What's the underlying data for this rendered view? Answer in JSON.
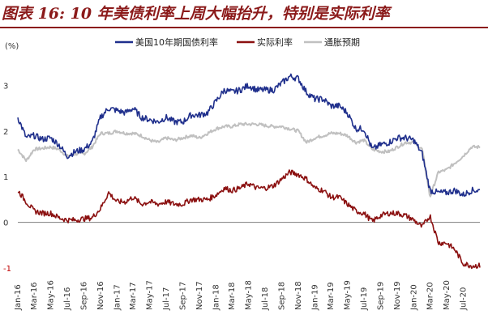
{
  "title": "图表 16: 10 年美债利率上周大幅抬升，特别是实际利率",
  "chart_data": {
    "type": "line",
    "ylabel": "(%)",
    "ylim": [
      -1,
      3.7
    ],
    "y_ticks": [
      "3",
      "2",
      "1",
      "0",
      "-1"
    ],
    "x_ticks": [
      "Jan-16",
      "Mar-16",
      "May-16",
      "Jul-16",
      "Sep-16",
      "Nov-16",
      "Jan-17",
      "Mar-17",
      "May-17",
      "Jul-17",
      "Sep-17",
      "Nov-17",
      "Jan-18",
      "Mar-18",
      "May-18",
      "Jul-18",
      "Sep-18",
      "Nov-18",
      "Jan-19",
      "Mar-19",
      "May-19",
      "Jul-19",
      "Sep-19",
      "Nov-19",
      "Jan-20",
      "Mar-20",
      "May-20",
      "Jul-20"
    ],
    "grid": false,
    "legend_position": "top",
    "colors": {
      "nominal": "#1f2f8c",
      "real": "#8b1010",
      "breakeven": "#c0c0c0",
      "zero_line": "#7f7f7f",
      "negative_tick": "#c00000"
    },
    "series": [
      {
        "name": "美国10年期国债利率",
        "values": [
          {
            "x": "2016-01",
            "y": 2.3
          },
          {
            "x": "2016-02",
            "y": 1.85
          },
          {
            "x": "2016-03",
            "y": 1.9
          },
          {
            "x": "2016-04",
            "y": 1.82
          },
          {
            "x": "2016-05",
            "y": 1.85
          },
          {
            "x": "2016-06",
            "y": 1.7
          },
          {
            "x": "2016-07",
            "y": 1.45
          },
          {
            "x": "2016-08",
            "y": 1.55
          },
          {
            "x": "2016-09",
            "y": 1.6
          },
          {
            "x": "2016-10",
            "y": 1.75
          },
          {
            "x": "2016-11",
            "y": 2.3
          },
          {
            "x": "2016-12",
            "y": 2.5
          },
          {
            "x": "2017-01",
            "y": 2.45
          },
          {
            "x": "2017-02",
            "y": 2.4
          },
          {
            "x": "2017-03",
            "y": 2.5
          },
          {
            "x": "2017-04",
            "y": 2.3
          },
          {
            "x": "2017-05",
            "y": 2.25
          },
          {
            "x": "2017-06",
            "y": 2.2
          },
          {
            "x": "2017-07",
            "y": 2.3
          },
          {
            "x": "2017-08",
            "y": 2.2
          },
          {
            "x": "2017-09",
            "y": 2.2
          },
          {
            "x": "2017-10",
            "y": 2.35
          },
          {
            "x": "2017-11",
            "y": 2.35
          },
          {
            "x": "2017-12",
            "y": 2.4
          },
          {
            "x": "2018-01",
            "y": 2.65
          },
          {
            "x": "2018-02",
            "y": 2.9
          },
          {
            "x": "2018-03",
            "y": 2.85
          },
          {
            "x": "2018-04",
            "y": 2.9
          },
          {
            "x": "2018-05",
            "y": 3.0
          },
          {
            "x": "2018-06",
            "y": 2.9
          },
          {
            "x": "2018-07",
            "y": 2.9
          },
          {
            "x": "2018-08",
            "y": 2.9
          },
          {
            "x": "2018-09",
            "y": 3.05
          },
          {
            "x": "2018-10",
            "y": 3.2
          },
          {
            "x": "2018-11",
            "y": 3.15
          },
          {
            "x": "2018-12",
            "y": 2.85
          },
          {
            "x": "2019-01",
            "y": 2.7
          },
          {
            "x": "2019-02",
            "y": 2.7
          },
          {
            "x": "2019-03",
            "y": 2.55
          },
          {
            "x": "2019-04",
            "y": 2.55
          },
          {
            "x": "2019-05",
            "y": 2.4
          },
          {
            "x": "2019-06",
            "y": 2.05
          },
          {
            "x": "2019-07",
            "y": 2.05
          },
          {
            "x": "2019-08",
            "y": 1.6
          },
          {
            "x": "2019-09",
            "y": 1.7
          },
          {
            "x": "2019-10",
            "y": 1.75
          },
          {
            "x": "2019-11",
            "y": 1.85
          },
          {
            "x": "2019-12",
            "y": 1.85
          },
          {
            "x": "2020-01",
            "y": 1.8
          },
          {
            "x": "2020-02",
            "y": 1.5
          },
          {
            "x": "2020-03",
            "y": 0.7
          },
          {
            "x": "2020-04",
            "y": 0.65
          },
          {
            "x": "2020-05",
            "y": 0.65
          },
          {
            "x": "2020-06",
            "y": 0.7
          },
          {
            "x": "2020-07",
            "y": 0.6
          },
          {
            "x": "2020-08",
            "y": 0.7
          }
        ]
      },
      {
        "name": "实际利率",
        "values": [
          {
            "x": "2016-01",
            "y": 0.7
          },
          {
            "x": "2016-02",
            "y": 0.45
          },
          {
            "x": "2016-03",
            "y": 0.25
          },
          {
            "x": "2016-04",
            "y": 0.2
          },
          {
            "x": "2016-05",
            "y": 0.2
          },
          {
            "x": "2016-06",
            "y": 0.1
          },
          {
            "x": "2016-07",
            "y": 0.05
          },
          {
            "x": "2016-08",
            "y": 0.05
          },
          {
            "x": "2016-09",
            "y": 0.08
          },
          {
            "x": "2016-10",
            "y": 0.1
          },
          {
            "x": "2016-11",
            "y": 0.3
          },
          {
            "x": "2016-12",
            "y": 0.65
          },
          {
            "x": "2017-01",
            "y": 0.45
          },
          {
            "x": "2017-02",
            "y": 0.45
          },
          {
            "x": "2017-03",
            "y": 0.55
          },
          {
            "x": "2017-04",
            "y": 0.4
          },
          {
            "x": "2017-05",
            "y": 0.45
          },
          {
            "x": "2017-06",
            "y": 0.4
          },
          {
            "x": "2017-07",
            "y": 0.45
          },
          {
            "x": "2017-08",
            "y": 0.4
          },
          {
            "x": "2017-09",
            "y": 0.4
          },
          {
            "x": "2017-10",
            "y": 0.5
          },
          {
            "x": "2017-11",
            "y": 0.5
          },
          {
            "x": "2017-12",
            "y": 0.5
          },
          {
            "x": "2018-01",
            "y": 0.6
          },
          {
            "x": "2018-02",
            "y": 0.75
          },
          {
            "x": "2018-03",
            "y": 0.7
          },
          {
            "x": "2018-04",
            "y": 0.75
          },
          {
            "x": "2018-05",
            "y": 0.85
          },
          {
            "x": "2018-06",
            "y": 0.75
          },
          {
            "x": "2018-07",
            "y": 0.75
          },
          {
            "x": "2018-08",
            "y": 0.8
          },
          {
            "x": "2018-09",
            "y": 0.95
          },
          {
            "x": "2018-10",
            "y": 1.1
          },
          {
            "x": "2018-11",
            "y": 1.05
          },
          {
            "x": "2018-12",
            "y": 0.95
          },
          {
            "x": "2019-01",
            "y": 0.75
          },
          {
            "x": "2019-02",
            "y": 0.7
          },
          {
            "x": "2019-03",
            "y": 0.55
          },
          {
            "x": "2019-04",
            "y": 0.55
          },
          {
            "x": "2019-05",
            "y": 0.4
          },
          {
            "x": "2019-06",
            "y": 0.25
          },
          {
            "x": "2019-07",
            "y": 0.2
          },
          {
            "x": "2019-08",
            "y": 0.02
          },
          {
            "x": "2019-09",
            "y": 0.15
          },
          {
            "x": "2019-10",
            "y": 0.2
          },
          {
            "x": "2019-11",
            "y": 0.2
          },
          {
            "x": "2019-12",
            "y": 0.15
          },
          {
            "x": "2020-01",
            "y": 0.05
          },
          {
            "x": "2020-02",
            "y": -0.1
          },
          {
            "x": "2020-03",
            "y": 0.15
          },
          {
            "x": "2020-04",
            "y": -0.45
          },
          {
            "x": "2020-05",
            "y": -0.45
          },
          {
            "x": "2020-06",
            "y": -0.6
          },
          {
            "x": "2020-07",
            "y": -0.9
          },
          {
            "x": "2020-08",
            "y": -0.95
          }
        ]
      },
      {
        "name": "通胀预期",
        "values": [
          {
            "x": "2016-01",
            "y": 1.6
          },
          {
            "x": "2016-02",
            "y": 1.35
          },
          {
            "x": "2016-03",
            "y": 1.6
          },
          {
            "x": "2016-04",
            "y": 1.62
          },
          {
            "x": "2016-05",
            "y": 1.65
          },
          {
            "x": "2016-06",
            "y": 1.6
          },
          {
            "x": "2016-07",
            "y": 1.45
          },
          {
            "x": "2016-08",
            "y": 1.5
          },
          {
            "x": "2016-09",
            "y": 1.5
          },
          {
            "x": "2016-10",
            "y": 1.65
          },
          {
            "x": "2016-11",
            "y": 1.95
          },
          {
            "x": "2016-12",
            "y": 1.95
          },
          {
            "x": "2017-01",
            "y": 2.0
          },
          {
            "x": "2017-02",
            "y": 1.95
          },
          {
            "x": "2017-03",
            "y": 1.95
          },
          {
            "x": "2017-04",
            "y": 1.9
          },
          {
            "x": "2017-05",
            "y": 1.8
          },
          {
            "x": "2017-06",
            "y": 1.75
          },
          {
            "x": "2017-07",
            "y": 1.85
          },
          {
            "x": "2017-08",
            "y": 1.8
          },
          {
            "x": "2017-09",
            "y": 1.85
          },
          {
            "x": "2017-10",
            "y": 1.9
          },
          {
            "x": "2017-11",
            "y": 1.85
          },
          {
            "x": "2017-12",
            "y": 1.95
          },
          {
            "x": "2018-01",
            "y": 2.05
          },
          {
            "x": "2018-02",
            "y": 2.1
          },
          {
            "x": "2018-03",
            "y": 2.1
          },
          {
            "x": "2018-04",
            "y": 2.15
          },
          {
            "x": "2018-05",
            "y": 2.15
          },
          {
            "x": "2018-06",
            "y": 2.15
          },
          {
            "x": "2018-07",
            "y": 2.12
          },
          {
            "x": "2018-08",
            "y": 2.1
          },
          {
            "x": "2018-09",
            "y": 2.1
          },
          {
            "x": "2018-10",
            "y": 2.05
          },
          {
            "x": "2018-11",
            "y": 2.0
          },
          {
            "x": "2018-12",
            "y": 1.75
          },
          {
            "x": "2019-01",
            "y": 1.85
          },
          {
            "x": "2019-02",
            "y": 1.9
          },
          {
            "x": "2019-03",
            "y": 1.95
          },
          {
            "x": "2019-04",
            "y": 1.95
          },
          {
            "x": "2019-05",
            "y": 1.9
          },
          {
            "x": "2019-06",
            "y": 1.75
          },
          {
            "x": "2019-07",
            "y": 1.8
          },
          {
            "x": "2019-08",
            "y": 1.6
          },
          {
            "x": "2019-09",
            "y": 1.55
          },
          {
            "x": "2019-10",
            "y": 1.55
          },
          {
            "x": "2019-11",
            "y": 1.65
          },
          {
            "x": "2019-12",
            "y": 1.75
          },
          {
            "x": "2020-01",
            "y": 1.75
          },
          {
            "x": "2020-02",
            "y": 1.6
          },
          {
            "x": "2020-03",
            "y": 0.55
          },
          {
            "x": "2020-04",
            "y": 1.1
          },
          {
            "x": "2020-05",
            "y": 1.15
          },
          {
            "x": "2020-06",
            "y": 1.3
          },
          {
            "x": "2020-07",
            "y": 1.45
          },
          {
            "x": "2020-08",
            "y": 1.65
          }
        ]
      }
    ]
  }
}
